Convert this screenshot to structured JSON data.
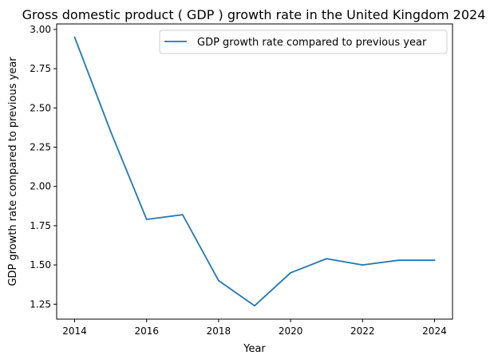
{
  "chart_data": {
    "type": "line",
    "title": "Gross domestic product ( GDP ) growth rate in the United Kingdom 2024",
    "xlabel": "Year",
    "ylabel": "GDP growth rate compared to previous year",
    "x": [
      2014,
      2015,
      2016,
      2017,
      2018,
      2019,
      2020,
      2021,
      2022,
      2023,
      2024
    ],
    "series": [
      {
        "name": "GDP growth rate compared to previous year",
        "color": "#1f77b4",
        "values": [
          2.95,
          2.35,
          1.79,
          1.82,
          1.4,
          1.24,
          1.45,
          1.54,
          1.5,
          1.53,
          1.53
        ]
      }
    ],
    "xticks": [
      2014,
      2016,
      2018,
      2020,
      2022,
      2024
    ],
    "yticks": [
      1.25,
      1.5,
      1.75,
      2.0,
      2.25,
      2.5,
      2.75,
      3.0
    ],
    "ytick_labels": [
      "1.25",
      "1.50",
      "1.75",
      "2.00",
      "2.25",
      "2.50",
      "2.75",
      "3.00"
    ],
    "xlim": [
      2013.5,
      2024.5
    ],
    "ylim": [
      1.155,
      3.035
    ],
    "grid": false,
    "legend_position": "top-right"
  }
}
